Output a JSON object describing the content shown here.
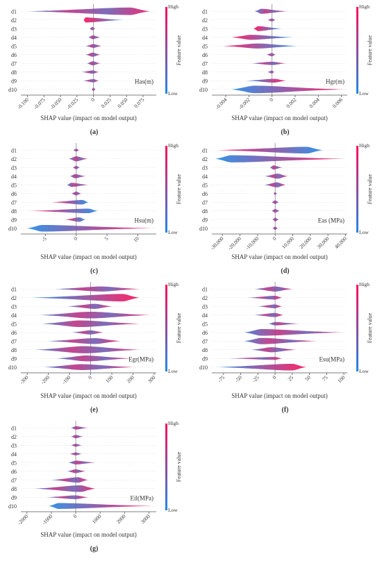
{
  "shared": {
    "feature_labels": [
      "d1",
      "d2",
      "d3",
      "d4",
      "d5",
      "d6",
      "d7",
      "d8",
      "d9",
      "d10"
    ],
    "xlabel": "SHAP value (impact on model output)",
    "colorbar_title": "Feature value",
    "colorbar_high": "High",
    "colorbar_low": "Low",
    "color_low": "#1e88e5",
    "color_high": "#ff0d57"
  },
  "chart_data": [
    {
      "type": "beeswarm",
      "panel": "(a)",
      "annotation": "Has(m)",
      "xlim": [
        -0.11,
        0.095
      ],
      "ticks": [
        -0.1,
        -0.075,
        -0.05,
        -0.025,
        0,
        0.025,
        0.05,
        0.075
      ],
      "tick_labels": [
        "-0.100",
        "-0.075",
        "-0.050",
        "-0.025",
        "0",
        "0.025",
        "0.050",
        "0.075"
      ],
      "features": [
        {
          "min": -0.1,
          "max": 0.085,
          "peak": 0.055,
          "width": 0.9,
          "color": "mixed"
        },
        {
          "min": -0.015,
          "max": 0.045,
          "peak": -0.012,
          "width": 0.6,
          "color": "high-low"
        },
        {
          "min": -0.006,
          "max": 0.003,
          "peak": -0.002,
          "width": 0.4,
          "color": "mixed"
        },
        {
          "min": -0.008,
          "max": 0.01,
          "peak": -0.001,
          "width": 0.45,
          "color": "mixed"
        },
        {
          "min": -0.012,
          "max": 0.012,
          "peak": 0.0,
          "width": 0.45,
          "color": "mixed"
        },
        {
          "min": -0.012,
          "max": 0.01,
          "peak": -0.001,
          "width": 0.5,
          "color": "mixed"
        },
        {
          "min": -0.01,
          "max": 0.01,
          "peak": -0.001,
          "width": 0.5,
          "color": "mixed"
        },
        {
          "min": -0.018,
          "max": 0.008,
          "peak": -0.001,
          "width": 0.4,
          "color": "mixed"
        },
        {
          "min": -0.016,
          "max": 0.008,
          "peak": 0.0,
          "width": 0.4,
          "color": "mixed"
        },
        {
          "min": -0.003,
          "max": 0.003,
          "peak": 0.0,
          "width": 0.4,
          "color": "mixed"
        }
      ]
    },
    {
      "type": "beeswarm",
      "panel": "(b)",
      "annotation": "Hgr(m)",
      "xlim": [
        -0.0052,
        0.0065
      ],
      "ticks": [
        -0.004,
        -0.002,
        0,
        0.002,
        0.004,
        0.006
      ],
      "tick_labels": [
        "-0.004",
        "-0.002",
        "0",
        "0.002",
        "0.004",
        "0.006"
      ],
      "features": [
        {
          "min": -0.0015,
          "max": 0.0013,
          "peak": -0.0009,
          "width": 0.6,
          "color": "mixed"
        },
        {
          "min": -0.0004,
          "max": 0.0003,
          "peak": 0.0,
          "width": 0.35,
          "color": "mixed"
        },
        {
          "min": -0.0016,
          "max": 0.0008,
          "peak": -0.0012,
          "width": 0.6,
          "color": "high-low"
        },
        {
          "min": -0.0035,
          "max": 0.0018,
          "peak": -0.0018,
          "width": 0.6,
          "color": "high-low"
        },
        {
          "min": -0.0042,
          "max": 0.0022,
          "peak": -0.0012,
          "width": 0.6,
          "color": "high-low"
        },
        {
          "min": -0.0005,
          "max": 0.0003,
          "peak": 0.0,
          "width": 0.4,
          "color": "mixed"
        },
        {
          "min": -0.0018,
          "max": 0.0012,
          "peak": 0.0,
          "width": 0.4,
          "color": "mixed"
        },
        {
          "min": -0.0004,
          "max": 0.0002,
          "peak": 0.0,
          "width": 0.35,
          "color": "mixed"
        },
        {
          "min": -0.0022,
          "max": 0.0012,
          "peak": 0.0002,
          "width": 0.45,
          "color": "low-high"
        },
        {
          "min": -0.0035,
          "max": 0.0062,
          "peak": -0.0015,
          "width": 0.9,
          "color": "low-high"
        }
      ]
    },
    {
      "type": "beeswarm",
      "panel": "(c)",
      "annotation": "Hsu(m)",
      "xlim": [
        -9,
        13
      ],
      "ticks": [
        -5,
        0,
        5,
        10
      ],
      "tick_labels": [
        "-5",
        "0",
        "5",
        "10"
      ],
      "features": [
        {
          "min": -0.5,
          "max": 0.5,
          "peak": 0.0,
          "width": 0.35,
          "color": "mixed"
        },
        {
          "min": -1.2,
          "max": 1.8,
          "peak": 0.0,
          "width": 0.6,
          "color": "mixed"
        },
        {
          "min": -0.6,
          "max": 0.6,
          "peak": 0.0,
          "width": 0.4,
          "color": "mixed"
        },
        {
          "min": -1.0,
          "max": 1.5,
          "peak": -0.2,
          "width": 0.5,
          "color": "mixed"
        },
        {
          "min": -1.5,
          "max": 2.0,
          "peak": -0.8,
          "width": 0.5,
          "color": "mixed"
        },
        {
          "min": -0.8,
          "max": 0.8,
          "peak": 0.0,
          "width": 0.45,
          "color": "mixed"
        },
        {
          "min": -4.0,
          "max": 2.0,
          "peak": 1.0,
          "width": 0.55,
          "color": "high-low"
        },
        {
          "min": -7.5,
          "max": 3.5,
          "peak": 2.0,
          "width": 0.55,
          "color": "high-low"
        },
        {
          "min": -1.8,
          "max": 1.5,
          "peak": 0.5,
          "width": 0.55,
          "color": "high-low"
        },
        {
          "min": -8.0,
          "max": 12.0,
          "peak": -5.5,
          "width": 0.8,
          "color": "low-high"
        }
      ]
    },
    {
      "type": "beeswarm",
      "panel": "(d)",
      "annotation": "Eas (MPa)",
      "xlim": [
        -36000,
        41000
      ],
      "ticks": [
        -30000,
        -20000,
        -10000,
        0,
        10000,
        20000,
        30000,
        40000
      ],
      "tick_labels": [
        "-30,000",
        "-20,000",
        "-10,000",
        "0",
        "10,000",
        "20,000",
        "30,000",
        "40,000"
      ],
      "features": [
        {
          "min": -33000,
          "max": 27000,
          "peak": 18000,
          "width": 0.8,
          "color": "high-low"
        },
        {
          "min": -34000,
          "max": 39000,
          "peak": -25000,
          "width": 0.85,
          "color": "low-high"
        },
        {
          "min": -3000,
          "max": 4000,
          "peak": -1000,
          "width": 0.5,
          "color": "mixed"
        },
        {
          "min": -6000,
          "max": 7000,
          "peak": 1500,
          "width": 0.6,
          "color": "mixed"
        },
        {
          "min": -6000,
          "max": 6000,
          "peak": 1000,
          "width": 0.6,
          "color": "mixed"
        },
        {
          "min": -1000,
          "max": 1000,
          "peak": 0,
          "width": 0.35,
          "color": "mixed"
        },
        {
          "min": -2000,
          "max": 2000,
          "peak": 0,
          "width": 0.45,
          "color": "mixed"
        },
        {
          "min": -2000,
          "max": 2500,
          "peak": 0,
          "width": 0.45,
          "color": "mixed"
        },
        {
          "min": -1500,
          "max": 2000,
          "peak": 0,
          "width": 0.45,
          "color": "mixed"
        },
        {
          "min": -1500,
          "max": 1500,
          "peak": 0,
          "width": 0.4,
          "color": "mixed"
        }
      ]
    },
    {
      "type": "beeswarm",
      "panel": "(e)",
      "annotation": "Egr(MPa)",
      "xlim": [
        -330,
        310
      ],
      "ticks": [
        -300,
        -200,
        -100,
        0,
        100,
        200,
        300
      ],
      "tick_labels": [
        "-300",
        "-200",
        "-100",
        "0",
        "100",
        "200",
        "300"
      ],
      "features": [
        {
          "min": -170,
          "max": 230,
          "peak": 50,
          "width": 0.6,
          "color": "mixed"
        },
        {
          "min": -280,
          "max": 230,
          "peak": 150,
          "width": 0.9,
          "color": "low-high"
        },
        {
          "min": -110,
          "max": 100,
          "peak": 20,
          "width": 0.6,
          "color": "mixed"
        },
        {
          "min": -240,
          "max": 280,
          "peak": 0,
          "width": 0.8,
          "color": "mixed"
        },
        {
          "min": -230,
          "max": 230,
          "peak": -50,
          "width": 0.8,
          "color": "mixed"
        },
        {
          "min": -90,
          "max": 60,
          "peak": 0,
          "width": 0.5,
          "color": "mixed"
        },
        {
          "min": -200,
          "max": 140,
          "peak": 20,
          "width": 0.7,
          "color": "mixed"
        },
        {
          "min": -260,
          "max": 230,
          "peak": -30,
          "width": 0.85,
          "color": "mixed"
        },
        {
          "min": -160,
          "max": 190,
          "peak": -20,
          "width": 0.7,
          "color": "mixed"
        },
        {
          "min": -220,
          "max": 200,
          "peak": -40,
          "width": 0.7,
          "color": "mixed"
        }
      ]
    },
    {
      "type": "beeswarm",
      "panel": "(f)",
      "annotation": "Esu(MPa)",
      "xlim": [
        -92,
        105
      ],
      "ticks": [
        -75,
        -50,
        -25,
        0,
        25,
        50,
        75,
        100
      ],
      "tick_labels": [
        "-75",
        "-50",
        "-25",
        "0",
        "25",
        "50",
        "75",
        "100"
      ],
      "features": [
        {
          "min": -30,
          "max": 25,
          "peak": 0,
          "width": 0.6,
          "color": "mixed"
        },
        {
          "min": -40,
          "max": 10,
          "peak": 0,
          "width": 0.45,
          "color": "mixed"
        },
        {
          "min": -25,
          "max": 10,
          "peak": 0,
          "width": 0.45,
          "color": "mixed"
        },
        {
          "min": -30,
          "max": 12,
          "peak": 0,
          "width": 0.5,
          "color": "mixed"
        },
        {
          "min": -10,
          "max": 35,
          "peak": 0,
          "width": 0.4,
          "color": "mixed"
        },
        {
          "min": -45,
          "max": 98,
          "peak": -20,
          "width": 0.8,
          "color": "mixed"
        },
        {
          "min": -45,
          "max": 60,
          "peak": -20,
          "width": 0.75,
          "color": "mixed"
        },
        {
          "min": -35,
          "max": 30,
          "peak": -5,
          "width": 0.6,
          "color": "mixed"
        },
        {
          "min": -68,
          "max": 10,
          "peak": 0,
          "width": 0.35,
          "color": "mixed"
        },
        {
          "min": -85,
          "max": 45,
          "peak": 25,
          "width": 0.8,
          "color": "low-high"
        }
      ]
    },
    {
      "type": "beeswarm",
      "panel": "(g)",
      "annotation": "Eil(MPa)",
      "xlim": [
        -2250,
        3300
      ],
      "ticks": [
        -2000,
        -1000,
        0,
        1000,
        2000,
        3000
      ],
      "tick_labels": [
        "-2000",
        "-1000",
        "0",
        "1000",
        "2000",
        "3000"
      ],
      "features": [
        {
          "min": -200,
          "max": 500,
          "peak": 0,
          "width": 0.4,
          "color": "mixed"
        },
        {
          "min": -200,
          "max": 300,
          "peak": 0,
          "width": 0.4,
          "color": "mixed"
        },
        {
          "min": -200,
          "max": 250,
          "peak": 0,
          "width": 0.35,
          "color": "mixed"
        },
        {
          "min": -250,
          "max": 250,
          "peak": 0,
          "width": 0.35,
          "color": "mixed"
        },
        {
          "min": -300,
          "max": 800,
          "peak": 0,
          "width": 0.45,
          "color": "mixed"
        },
        {
          "min": -350,
          "max": 400,
          "peak": 0,
          "width": 0.45,
          "color": "mixed"
        },
        {
          "min": -1000,
          "max": 500,
          "peak": 100,
          "width": 0.65,
          "color": "mixed"
        },
        {
          "min": -1700,
          "max": 800,
          "peak": 200,
          "width": 0.8,
          "color": "mixed"
        },
        {
          "min": -1200,
          "max": 500,
          "peak": 0,
          "width": 0.45,
          "color": "mixed"
        },
        {
          "min": -1100,
          "max": 3100,
          "peak": -700,
          "width": 0.7,
          "color": "low-high"
        }
      ]
    }
  ]
}
